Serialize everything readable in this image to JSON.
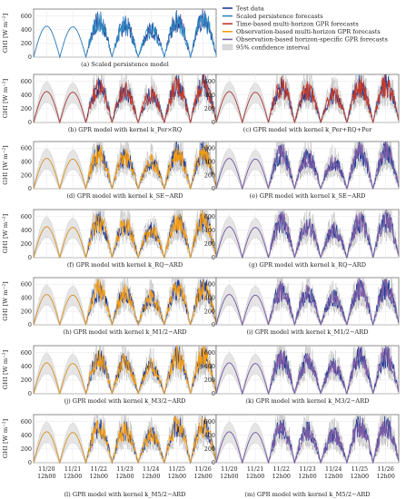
{
  "chart_data": {
    "type": "line",
    "ylabel": "GHI [W m⁻²]",
    "ylim": [
      0,
      700
    ],
    "yticks": [
      0,
      200,
      400,
      600
    ],
    "xticks": [
      {
        "l1": "11/20",
        "l2": "12h00",
        "day": 0
      },
      {
        "l1": "11/21",
        "l2": "12h00",
        "day": 1
      },
      {
        "l1": "11/22",
        "l2": "12h00",
        "day": 2
      },
      {
        "l1": "11/23",
        "l2": "12h00",
        "day": 3
      },
      {
        "l1": "11/24",
        "l2": "12h00",
        "day": 4
      },
      {
        "l1": "11/25",
        "l2": "12h00",
        "day": 5
      },
      {
        "l1": "11/26",
        "l2": "12h00",
        "day": 6
      }
    ],
    "legend": [
      {
        "label": "Test data",
        "color": "#1f3a93",
        "kind": "line"
      },
      {
        "label": "Scaled persistence forecasts",
        "color": "#2e86c1",
        "kind": "line"
      },
      {
        "label": "Time-based multi-horizon GPR forecasts",
        "color": "#c0392b",
        "kind": "line"
      },
      {
        "label": "Observation-based multi-horizon GPR forecasts",
        "color": "#f39c12",
        "kind": "line"
      },
      {
        "label": "Observation-based horizon-specific GPR forecasts",
        "color": "#7d5ba6",
        "kind": "line"
      },
      {
        "label": "95% confidence interval",
        "color": "#d9d9d9",
        "kind": "box"
      }
    ],
    "daily_peaks": [
      450,
      440,
      620,
      560,
      480,
      640,
      650
    ],
    "panels": [
      {
        "id": "a",
        "caption": "(a) Scaled persistence model",
        "model": "persistence",
        "color": "#2e86c1",
        "ci": false
      },
      {
        "id": "b",
        "caption": "(b) GPR model with kernel k_Per×RQ",
        "model": "time",
        "color": "#c0392b",
        "ci": true
      },
      {
        "id": "c",
        "caption": "(c) GPR model with kernel k_Per+RQ+Per",
        "model": "time",
        "color": "#c0392b",
        "ci": true
      },
      {
        "id": "d",
        "caption": "(d) GPR model with kernel k_SE−ARD",
        "model": "obs-multi",
        "color": "#f39c12",
        "ci": true
      },
      {
        "id": "e",
        "caption": "(e) GPR model with kernel k_SE−ARD",
        "model": "obs-specific",
        "color": "#7d5ba6",
        "ci": true
      },
      {
        "id": "f",
        "caption": "(f) GPR model with kernel k_RQ−ARD",
        "model": "obs-multi",
        "color": "#f39c12",
        "ci": true
      },
      {
        "id": "g",
        "caption": "(g) GPR model with kernel k_RQ−ARD",
        "model": "obs-specific",
        "color": "#7d5ba6",
        "ci": true
      },
      {
        "id": "h",
        "caption": "(h) GPR model with kernel k_M1/2−ARD",
        "model": "obs-multi",
        "color": "#f39c12",
        "ci": true
      },
      {
        "id": "i",
        "caption": "(i) GPR model with kernel k_M1/2−ARD",
        "model": "obs-specific",
        "color": "#7d5ba6",
        "ci": true
      },
      {
        "id": "j",
        "caption": "(j) GPR model with kernel k_M3/2−ARD",
        "model": "obs-multi",
        "color": "#f39c12",
        "ci": true
      },
      {
        "id": "k",
        "caption": "(k) GPR model with kernel k_M3/2−ARD",
        "model": "obs-specific",
        "color": "#7d5ba6",
        "ci": true
      },
      {
        "id": "l",
        "caption": "(l) GPR model with kernel k_M5/2−ARD",
        "model": "obs-multi",
        "color": "#f39c12",
        "ci": true
      },
      {
        "id": "m",
        "caption": "(m) GPR model with kernel k_M5/2−ARD",
        "model": "obs-specific",
        "color": "#7d5ba6",
        "ci": true
      }
    ]
  }
}
